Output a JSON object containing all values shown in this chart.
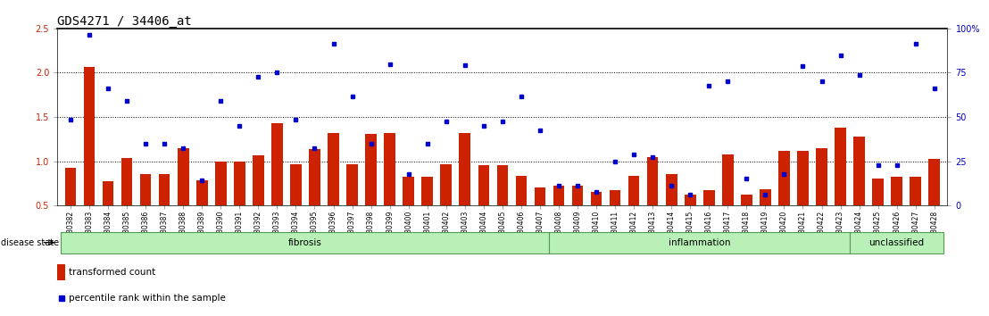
{
  "title": "GDS4271 / 34406_at",
  "samples": [
    "GSM380382",
    "GSM380383",
    "GSM380384",
    "GSM380385",
    "GSM380386",
    "GSM380387",
    "GSM380388",
    "GSM380389",
    "GSM380390",
    "GSM380391",
    "GSM380392",
    "GSM380393",
    "GSM380394",
    "GSM380395",
    "GSM380396",
    "GSM380397",
    "GSM380398",
    "GSM380399",
    "GSM380400",
    "GSM380401",
    "GSM380402",
    "GSM380403",
    "GSM380404",
    "GSM380405",
    "GSM380406",
    "GSM380407",
    "GSM380408",
    "GSM380409",
    "GSM380410",
    "GSM380411",
    "GSM380412",
    "GSM380413",
    "GSM380414",
    "GSM380415",
    "GSM380416",
    "GSM380417",
    "GSM380418",
    "GSM380419",
    "GSM380420",
    "GSM380421",
    "GSM380422",
    "GSM380423",
    "GSM380424",
    "GSM380425",
    "GSM380426",
    "GSM380427",
    "GSM380428"
  ],
  "red_bars": [
    0.92,
    2.06,
    0.77,
    1.04,
    0.85,
    0.85,
    1.15,
    0.78,
    1.0,
    1.0,
    1.07,
    1.43,
    0.97,
    1.14,
    1.32,
    0.97,
    1.31,
    1.32,
    0.82,
    0.82,
    0.97,
    1.32,
    0.95,
    0.95,
    0.83,
    0.7,
    0.72,
    0.72,
    0.65,
    0.67,
    0.83,
    1.05,
    0.85,
    0.62,
    0.67,
    1.08,
    0.62,
    0.68,
    1.12,
    1.12,
    1.15,
    1.38,
    1.28,
    0.8,
    0.82,
    0.82,
    1.03
  ],
  "blue_dots": [
    1.47,
    2.43,
    1.82,
    1.68,
    1.2,
    1.2,
    1.15,
    0.78,
    1.68,
    1.4,
    1.95,
    2.0,
    1.47,
    1.15,
    2.33,
    1.73,
    1.2,
    2.1,
    0.85,
    1.2,
    1.45,
    2.08,
    1.4,
    1.45,
    1.73,
    1.35,
    0.72,
    0.72,
    0.65,
    1.0,
    1.08,
    1.05,
    0.72,
    0.62,
    1.85,
    1.9,
    0.8,
    0.62,
    0.85,
    2.07,
    1.9,
    2.2,
    1.97,
    0.95,
    0.95,
    2.33,
    1.82
  ],
  "group_labels": [
    "fibrosis",
    "inflammation",
    "unclassified"
  ],
  "group_ranges": [
    [
      0,
      26
    ],
    [
      26,
      42
    ],
    [
      42,
      47
    ]
  ],
  "ylim_left": [
    0.5,
    2.5
  ],
  "ylim_right": [
    0,
    100
  ],
  "yticks_left": [
    0.5,
    1.0,
    1.5,
    2.0,
    2.5
  ],
  "yticks_right": [
    0,
    25,
    50,
    75,
    100
  ],
  "bar_color": "#CC2200",
  "dot_color": "#0000CC",
  "bg_color": "#FFFFFF",
  "group_fill": "#b8f0b8",
  "group_edge": "#559955"
}
